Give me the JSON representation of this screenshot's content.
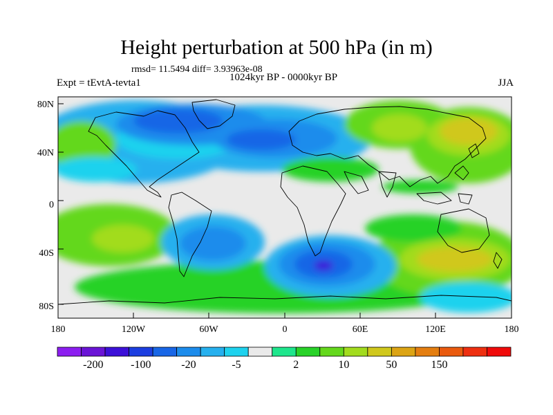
{
  "title": "Height perturbation at 500 hPa (in m)",
  "stats": "rmsd= 11.5494 diff= 3.93963e-08",
  "subtitle": "1024kyr BP - 0000kyr BP",
  "experiment": "Expt = tEvtA-tevta1",
  "season": "JJA",
  "lat_labels": [
    "80N",
    "40N",
    "0",
    "40S",
    "80S"
  ],
  "lon_labels": [
    "180",
    "120W",
    "60W",
    "0",
    "60E",
    "120E",
    "180"
  ],
  "colorbar": {
    "colors": [
      "#8c1ef0",
      "#6a14d6",
      "#3c10d8",
      "#1c3ee0",
      "#1866e6",
      "#1c8cec",
      "#26b0ee",
      "#1ed2ee",
      "#eaeaea",
      "#1ee68c",
      "#28d228",
      "#64d81c",
      "#a2dc1e",
      "#d0c81c",
      "#dca414",
      "#e47e10",
      "#ea5a0e",
      "#ee2f10",
      "#f00a0a"
    ],
    "labels": [
      "-200",
      "-100",
      "-20",
      "-5",
      "2",
      "10",
      "50",
      "150"
    ]
  }
}
